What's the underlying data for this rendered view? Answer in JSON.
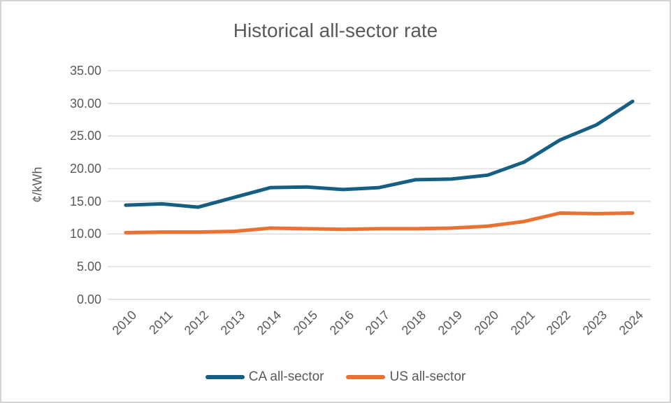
{
  "window": {
    "background": "#ffffff",
    "border_color": "#d6d3d3",
    "text_color": "#595959",
    "gridline_color": "#d9d9d9"
  },
  "chart_data": {
    "type": "line",
    "title": "Historical all-sector rate",
    "xlabel": "",
    "ylabel": "¢/kWh",
    "categories": [
      "2010",
      "2011",
      "2012",
      "2013",
      "2014",
      "2015",
      "2016",
      "2017",
      "2018",
      "2019",
      "2020",
      "2021",
      "2022",
      "2023",
      "2024"
    ],
    "series": [
      {
        "name": "CA all-sector",
        "color": "#156082",
        "values": [
          14.4,
          14.6,
          14.1,
          15.6,
          17.1,
          17.2,
          16.8,
          17.1,
          18.3,
          18.4,
          19.0,
          21.0,
          24.4,
          26.7,
          30.3
        ]
      },
      {
        "name": "US all-sector",
        "color": "#E97132",
        "values": [
          10.2,
          10.3,
          10.3,
          10.4,
          10.9,
          10.8,
          10.7,
          10.8,
          10.8,
          10.9,
          11.2,
          11.9,
          13.2,
          13.1,
          13.2
        ]
      }
    ],
    "ylim": [
      0,
      35
    ],
    "ytick_step": 5,
    "ytick_labels": [
      "0.00",
      "5.00",
      "10.00",
      "15.00",
      "20.00",
      "25.00",
      "30.00",
      "35.00"
    ],
    "grid": true,
    "legend_position": "bottom"
  }
}
